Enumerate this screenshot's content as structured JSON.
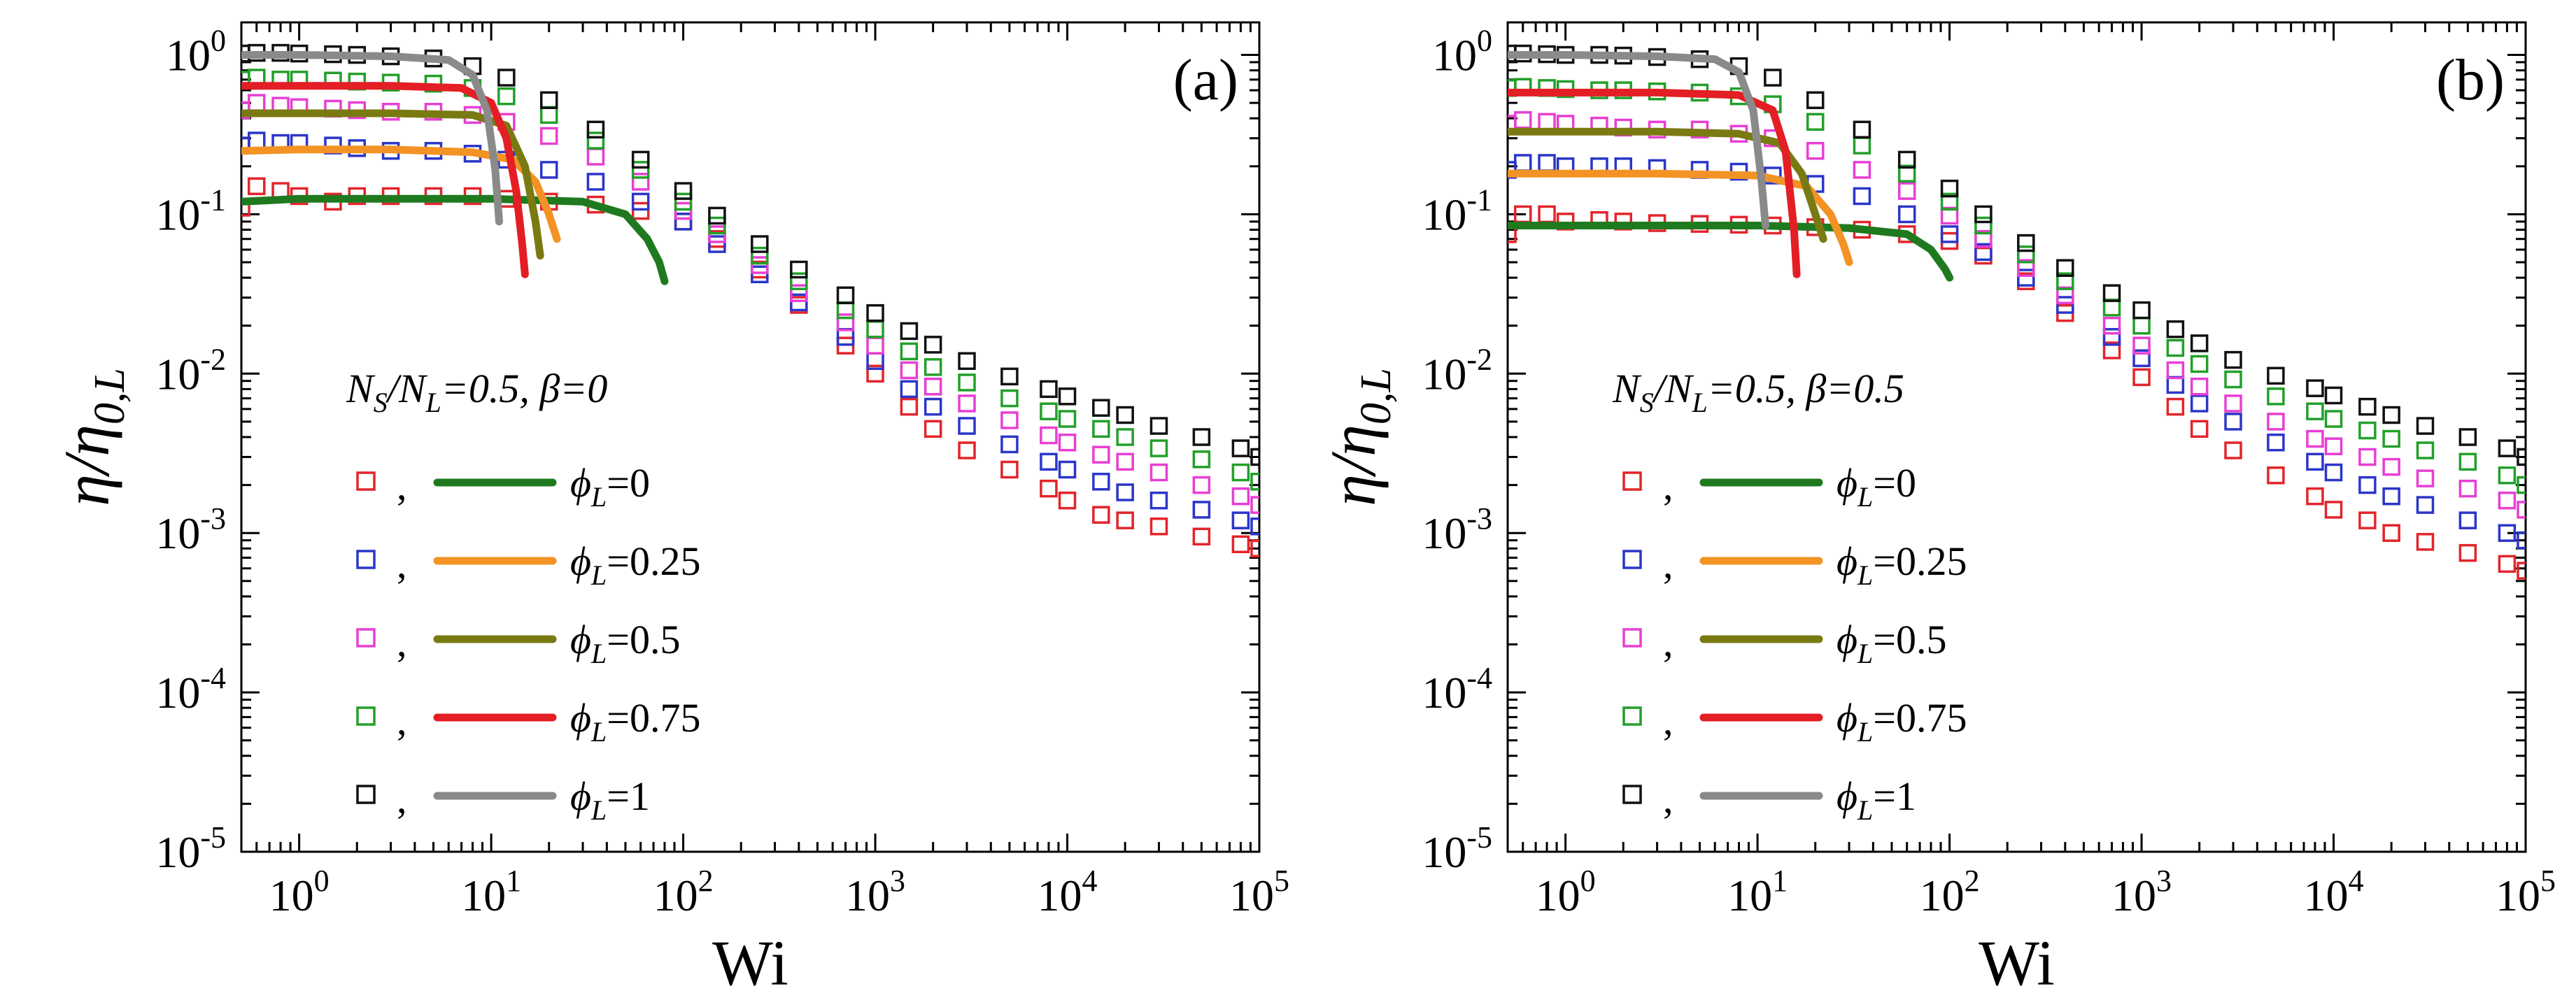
{
  "chart_data": [
    {
      "type": "scatter",
      "panel_label": "(a)",
      "xlabel": "Wi",
      "ylabel": "η/η0,L",
      "x_scale": "log",
      "y_scale": "log",
      "xlim": [
        0.5,
        100000
      ],
      "ylim": [
        1e-05,
        1.6
      ],
      "x_ticks": [
        1,
        10,
        100,
        1000,
        10000,
        100000
      ],
      "x_tick_labels": [
        "10^0",
        "10^1",
        "10^2",
        "10^3",
        "10^4",
        "10^5"
      ],
      "y_ticks": [
        1e-05,
        0.0001,
        0.001,
        0.01,
        0.1,
        1
      ],
      "y_tick_labels": [
        "10^-5",
        "10^-4",
        "10^-3",
        "10^-2",
        "10^-1",
        "10^0"
      ],
      "grid": false,
      "legend_placement": "center-left",
      "legend_title": "NS/NL=0.5, β=0",
      "legend_entries": [
        "ϕL=0",
        "ϕL=0.25",
        "ϕL=0.5",
        "ϕL=0.75",
        "ϕL=1"
      ],
      "series": [
        {
          "phi": "0",
          "marker_color": "#e2252b",
          "line_color": "#1f7a1f",
          "points_x": [
            0.5,
            0.6,
            0.8,
            1,
            1.5,
            2,
            3,
            5,
            8,
            12,
            20,
            35,
            60,
            100,
            150,
            250,
            400,
            700,
            1000,
            1500,
            2000,
            3000,
            5000,
            8000,
            10000,
            15000,
            20000,
            30000,
            50000,
            80000,
            100000
          ],
          "points_y": [
            0.11,
            0.15,
            0.14,
            0.13,
            0.12,
            0.13,
            0.13,
            0.13,
            0.13,
            0.125,
            0.12,
            0.115,
            0.105,
            0.09,
            0.07,
            0.045,
            0.027,
            0.015,
            0.01,
            0.0062,
            0.0045,
            0.0033,
            0.0025,
            0.0019,
            0.0016,
            0.0013,
            0.0012,
            0.0011,
            0.00095,
            0.00085,
            0.0008
          ],
          "line_x": [
            0.5,
            1,
            3,
            10,
            30,
            50,
            65,
            75,
            80
          ],
          "line_y": [
            0.12,
            0.125,
            0.125,
            0.125,
            0.12,
            0.1,
            0.07,
            0.05,
            0.038
          ]
        },
        {
          "phi": "0.25",
          "marker_color": "#2b36c9",
          "line_color": "#f39325",
          "points_x": [
            0.5,
            0.6,
            0.8,
            1,
            1.5,
            2,
            3,
            5,
            8,
            12,
            20,
            35,
            60,
            100,
            150,
            250,
            400,
            700,
            1000,
            1500,
            2000,
            3000,
            5000,
            8000,
            10000,
            15000,
            20000,
            30000,
            50000,
            80000,
            100000
          ],
          "points_y": [
            0.27,
            0.29,
            0.28,
            0.28,
            0.27,
            0.26,
            0.25,
            0.25,
            0.24,
            0.22,
            0.19,
            0.16,
            0.12,
            0.09,
            0.065,
            0.042,
            0.028,
            0.017,
            0.012,
            0.008,
            0.0062,
            0.0047,
            0.0036,
            0.0028,
            0.0025,
            0.0021,
            0.0018,
            0.0016,
            0.0014,
            0.0012,
            0.0011
          ],
          "line_x": [
            0.5,
            1,
            3,
            8,
            13,
            17,
            20,
            22
          ],
          "line_y": [
            0.25,
            0.255,
            0.255,
            0.245,
            0.22,
            0.16,
            0.1,
            0.07
          ]
        },
        {
          "phi": "0.5",
          "marker_color": "#e83fd3",
          "line_color": "#7a7a12",
          "points_x": [
            0.5,
            0.6,
            0.8,
            1,
            1.5,
            2,
            3,
            5,
            8,
            12,
            20,
            35,
            60,
            100,
            150,
            250,
            400,
            700,
            1000,
            1500,
            2000,
            3000,
            5000,
            8000,
            10000,
            15000,
            20000,
            30000,
            50000,
            80000,
            100000
          ],
          "points_y": [
            0.45,
            0.5,
            0.48,
            0.47,
            0.46,
            0.45,
            0.44,
            0.44,
            0.42,
            0.38,
            0.31,
            0.23,
            0.16,
            0.105,
            0.075,
            0.048,
            0.032,
            0.021,
            0.015,
            0.0105,
            0.0083,
            0.0065,
            0.0051,
            0.0041,
            0.0037,
            0.0031,
            0.0028,
            0.0024,
            0.002,
            0.0017,
            0.0015
          ],
          "line_x": [
            0.5,
            1,
            3,
            8,
            12,
            15,
            17,
            18
          ],
          "line_y": [
            0.43,
            0.43,
            0.43,
            0.42,
            0.36,
            0.2,
            0.09,
            0.055
          ]
        },
        {
          "phi": "0.75",
          "marker_color": "#22a02a",
          "line_color": "#e31e24",
          "points_x": [
            0.5,
            0.6,
            0.8,
            1,
            1.5,
            2,
            3,
            5,
            8,
            12,
            20,
            35,
            60,
            100,
            150,
            250,
            400,
            700,
            1000,
            1500,
            2000,
            3000,
            5000,
            8000,
            10000,
            15000,
            20000,
            30000,
            50000,
            80000,
            100000
          ],
          "points_y": [
            0.7,
            0.72,
            0.7,
            0.7,
            0.69,
            0.68,
            0.67,
            0.66,
            0.62,
            0.55,
            0.42,
            0.29,
            0.19,
            0.12,
            0.085,
            0.055,
            0.038,
            0.025,
            0.019,
            0.0138,
            0.011,
            0.0088,
            0.007,
            0.0058,
            0.0052,
            0.0045,
            0.004,
            0.0034,
            0.0029,
            0.0024,
            0.0021
          ],
          "line_x": [
            0.5,
            1,
            3,
            7,
            10,
            12,
            13.5,
            14.5,
            15
          ],
          "line_y": [
            0.64,
            0.64,
            0.64,
            0.62,
            0.5,
            0.3,
            0.14,
            0.065,
            0.042
          ]
        },
        {
          "phi": "1",
          "marker_color": "#111111",
          "line_color": "#8a8a8a",
          "points_x": [
            0.5,
            0.6,
            0.8,
            1,
            1.5,
            2,
            3,
            5,
            8,
            12,
            20,
            35,
            60,
            100,
            150,
            250,
            400,
            700,
            1000,
            1500,
            2000,
            3000,
            5000,
            8000,
            10000,
            15000,
            20000,
            30000,
            50000,
            80000,
            100000
          ],
          "points_y": [
            1.02,
            1.03,
            1.03,
            1.02,
            1.01,
            1.0,
            0.98,
            0.95,
            0.85,
            0.72,
            0.52,
            0.34,
            0.22,
            0.14,
            0.098,
            0.065,
            0.045,
            0.031,
            0.024,
            0.0185,
            0.0152,
            0.012,
            0.0096,
            0.008,
            0.0072,
            0.0061,
            0.0055,
            0.0047,
            0.004,
            0.0034,
            0.003
          ],
          "line_x": [
            0.5,
            1,
            3,
            6,
            8,
            9.5,
            10.5,
            11
          ],
          "line_y": [
            1.0,
            1.0,
            0.98,
            0.93,
            0.75,
            0.45,
            0.19,
            0.09
          ]
        }
      ]
    },
    {
      "type": "scatter",
      "panel_label": "(b)",
      "xlabel": "Wi",
      "ylabel": "η/η0,L",
      "x_scale": "log",
      "y_scale": "log",
      "xlim": [
        0.5,
        100000
      ],
      "ylim": [
        1e-05,
        1.6
      ],
      "x_ticks": [
        1,
        10,
        100,
        1000,
        10000,
        100000
      ],
      "x_tick_labels": [
        "10^0",
        "10^1",
        "10^2",
        "10^3",
        "10^4",
        "10^5"
      ],
      "y_ticks": [
        1e-05,
        0.0001,
        0.001,
        0.01,
        0.1,
        1
      ],
      "y_tick_labels": [
        "10^-5",
        "10^-4",
        "10^-3",
        "10^-2",
        "10^-1",
        "10^0"
      ],
      "grid": false,
      "legend_placement": "center-left",
      "legend_title": "NS/NL=0.5, β=0.5",
      "legend_entries": [
        "ϕL=0",
        "ϕL=0.25",
        "ϕL=0.5",
        "ϕL=0.75",
        "ϕL=1"
      ],
      "series": [
        {
          "phi": "0",
          "marker_color": "#e2252b",
          "line_color": "#1f7a1f",
          "points_x": [
            0.5,
            0.6,
            0.8,
            1,
            1.5,
            2,
            3,
            5,
            8,
            12,
            20,
            35,
            60,
            100,
            150,
            250,
            400,
            700,
            1000,
            1500,
            2000,
            3000,
            5000,
            8000,
            10000,
            15000,
            20000,
            30000,
            50000,
            80000,
            100000
          ],
          "points_y": [
            0.075,
            0.1,
            0.1,
            0.09,
            0.092,
            0.09,
            0.088,
            0.087,
            0.086,
            0.085,
            0.083,
            0.08,
            0.075,
            0.068,
            0.055,
            0.038,
            0.024,
            0.014,
            0.0095,
            0.0062,
            0.0045,
            0.0033,
            0.0023,
            0.0017,
            0.0014,
            0.0012,
            0.001,
            0.00088,
            0.00075,
            0.00064,
            0.00058
          ],
          "line_x": [
            0.5,
            1,
            3,
            10,
            30,
            60,
            80,
            95,
            100
          ],
          "line_y": [
            0.085,
            0.085,
            0.085,
            0.085,
            0.082,
            0.075,
            0.06,
            0.045,
            0.04
          ]
        },
        {
          "phi": "0.25",
          "marker_color": "#2b36c9",
          "line_color": "#f39325",
          "points_x": [
            0.5,
            0.6,
            0.8,
            1,
            1.5,
            2,
            3,
            5,
            8,
            12,
            20,
            35,
            60,
            100,
            150,
            250,
            400,
            700,
            1000,
            1500,
            2000,
            3000,
            5000,
            8000,
            10000,
            15000,
            20000,
            30000,
            50000,
            80000,
            100000
          ],
          "points_y": [
            0.19,
            0.21,
            0.21,
            0.2,
            0.2,
            0.2,
            0.195,
            0.19,
            0.185,
            0.175,
            0.155,
            0.13,
            0.1,
            0.075,
            0.058,
            0.04,
            0.027,
            0.017,
            0.0125,
            0.0085,
            0.0065,
            0.005,
            0.0037,
            0.0028,
            0.0024,
            0.002,
            0.0017,
            0.0015,
            0.0012,
            0.001,
            0.0009
          ],
          "line_x": [
            0.5,
            1,
            3,
            10,
            18,
            24,
            28,
            30
          ],
          "line_y": [
            0.18,
            0.18,
            0.18,
            0.175,
            0.15,
            0.1,
            0.065,
            0.05
          ]
        },
        {
          "phi": "0.5",
          "marker_color": "#e83fd3",
          "line_color": "#7a7a12",
          "points_x": [
            0.5,
            0.6,
            0.8,
            1,
            1.5,
            2,
            3,
            5,
            8,
            12,
            20,
            35,
            60,
            100,
            150,
            250,
            400,
            700,
            1000,
            1500,
            2000,
            3000,
            5000,
            8000,
            10000,
            15000,
            20000,
            30000,
            50000,
            80000,
            100000
          ],
          "points_y": [
            0.37,
            0.39,
            0.38,
            0.37,
            0.36,
            0.35,
            0.34,
            0.34,
            0.32,
            0.3,
            0.25,
            0.19,
            0.14,
            0.098,
            0.07,
            0.046,
            0.031,
            0.02,
            0.015,
            0.0105,
            0.0083,
            0.0065,
            0.005,
            0.0039,
            0.0035,
            0.003,
            0.0026,
            0.0022,
            0.0019,
            0.0016,
            0.0014
          ],
          "line_x": [
            0.5,
            1,
            3,
            8,
            13,
            17,
            20,
            22
          ],
          "line_y": [
            0.33,
            0.33,
            0.33,
            0.32,
            0.28,
            0.18,
            0.1,
            0.07
          ]
        },
        {
          "phi": "0.75",
          "marker_color": "#22a02a",
          "line_color": "#e31e24",
          "points_x": [
            0.5,
            0.6,
            0.8,
            1,
            1.5,
            2,
            3,
            5,
            8,
            12,
            20,
            35,
            60,
            100,
            150,
            250,
            400,
            700,
            1000,
            1500,
            2000,
            3000,
            5000,
            8000,
            10000,
            15000,
            20000,
            30000,
            50000,
            80000,
            100000
          ],
          "points_y": [
            0.62,
            0.63,
            0.62,
            0.61,
            0.6,
            0.6,
            0.59,
            0.58,
            0.55,
            0.49,
            0.38,
            0.27,
            0.18,
            0.12,
            0.085,
            0.056,
            0.038,
            0.026,
            0.02,
            0.0145,
            0.0115,
            0.0092,
            0.0072,
            0.0058,
            0.0052,
            0.0044,
            0.0039,
            0.0033,
            0.0028,
            0.0023,
            0.002
          ],
          "line_x": [
            0.5,
            1,
            3,
            8,
            12,
            14,
            15.5,
            16
          ],
          "line_y": [
            0.58,
            0.58,
            0.58,
            0.56,
            0.45,
            0.25,
            0.08,
            0.042
          ]
        },
        {
          "phi": "1",
          "marker_color": "#111111",
          "line_color": "#8a8a8a",
          "points_x": [
            0.5,
            0.6,
            0.8,
            1,
            1.5,
            2,
            3,
            5,
            8,
            12,
            20,
            35,
            60,
            100,
            150,
            250,
            400,
            700,
            1000,
            1500,
            2000,
            3000,
            5000,
            8000,
            10000,
            15000,
            20000,
            30000,
            50000,
            80000,
            100000
          ],
          "points_y": [
            1.02,
            1.02,
            1.01,
            1.0,
            1.0,
            0.99,
            0.97,
            0.94,
            0.85,
            0.72,
            0.52,
            0.34,
            0.22,
            0.145,
            0.1,
            0.066,
            0.046,
            0.032,
            0.025,
            0.019,
            0.0155,
            0.0122,
            0.0097,
            0.0081,
            0.0073,
            0.0062,
            0.0055,
            0.0047,
            0.004,
            0.0034,
            0.003
          ],
          "line_x": [
            0.5,
            1,
            3,
            6,
            8,
            9.5,
            10.5,
            11
          ],
          "line_y": [
            1.0,
            1.0,
            0.98,
            0.94,
            0.78,
            0.45,
            0.16,
            0.085
          ]
        }
      ]
    }
  ]
}
